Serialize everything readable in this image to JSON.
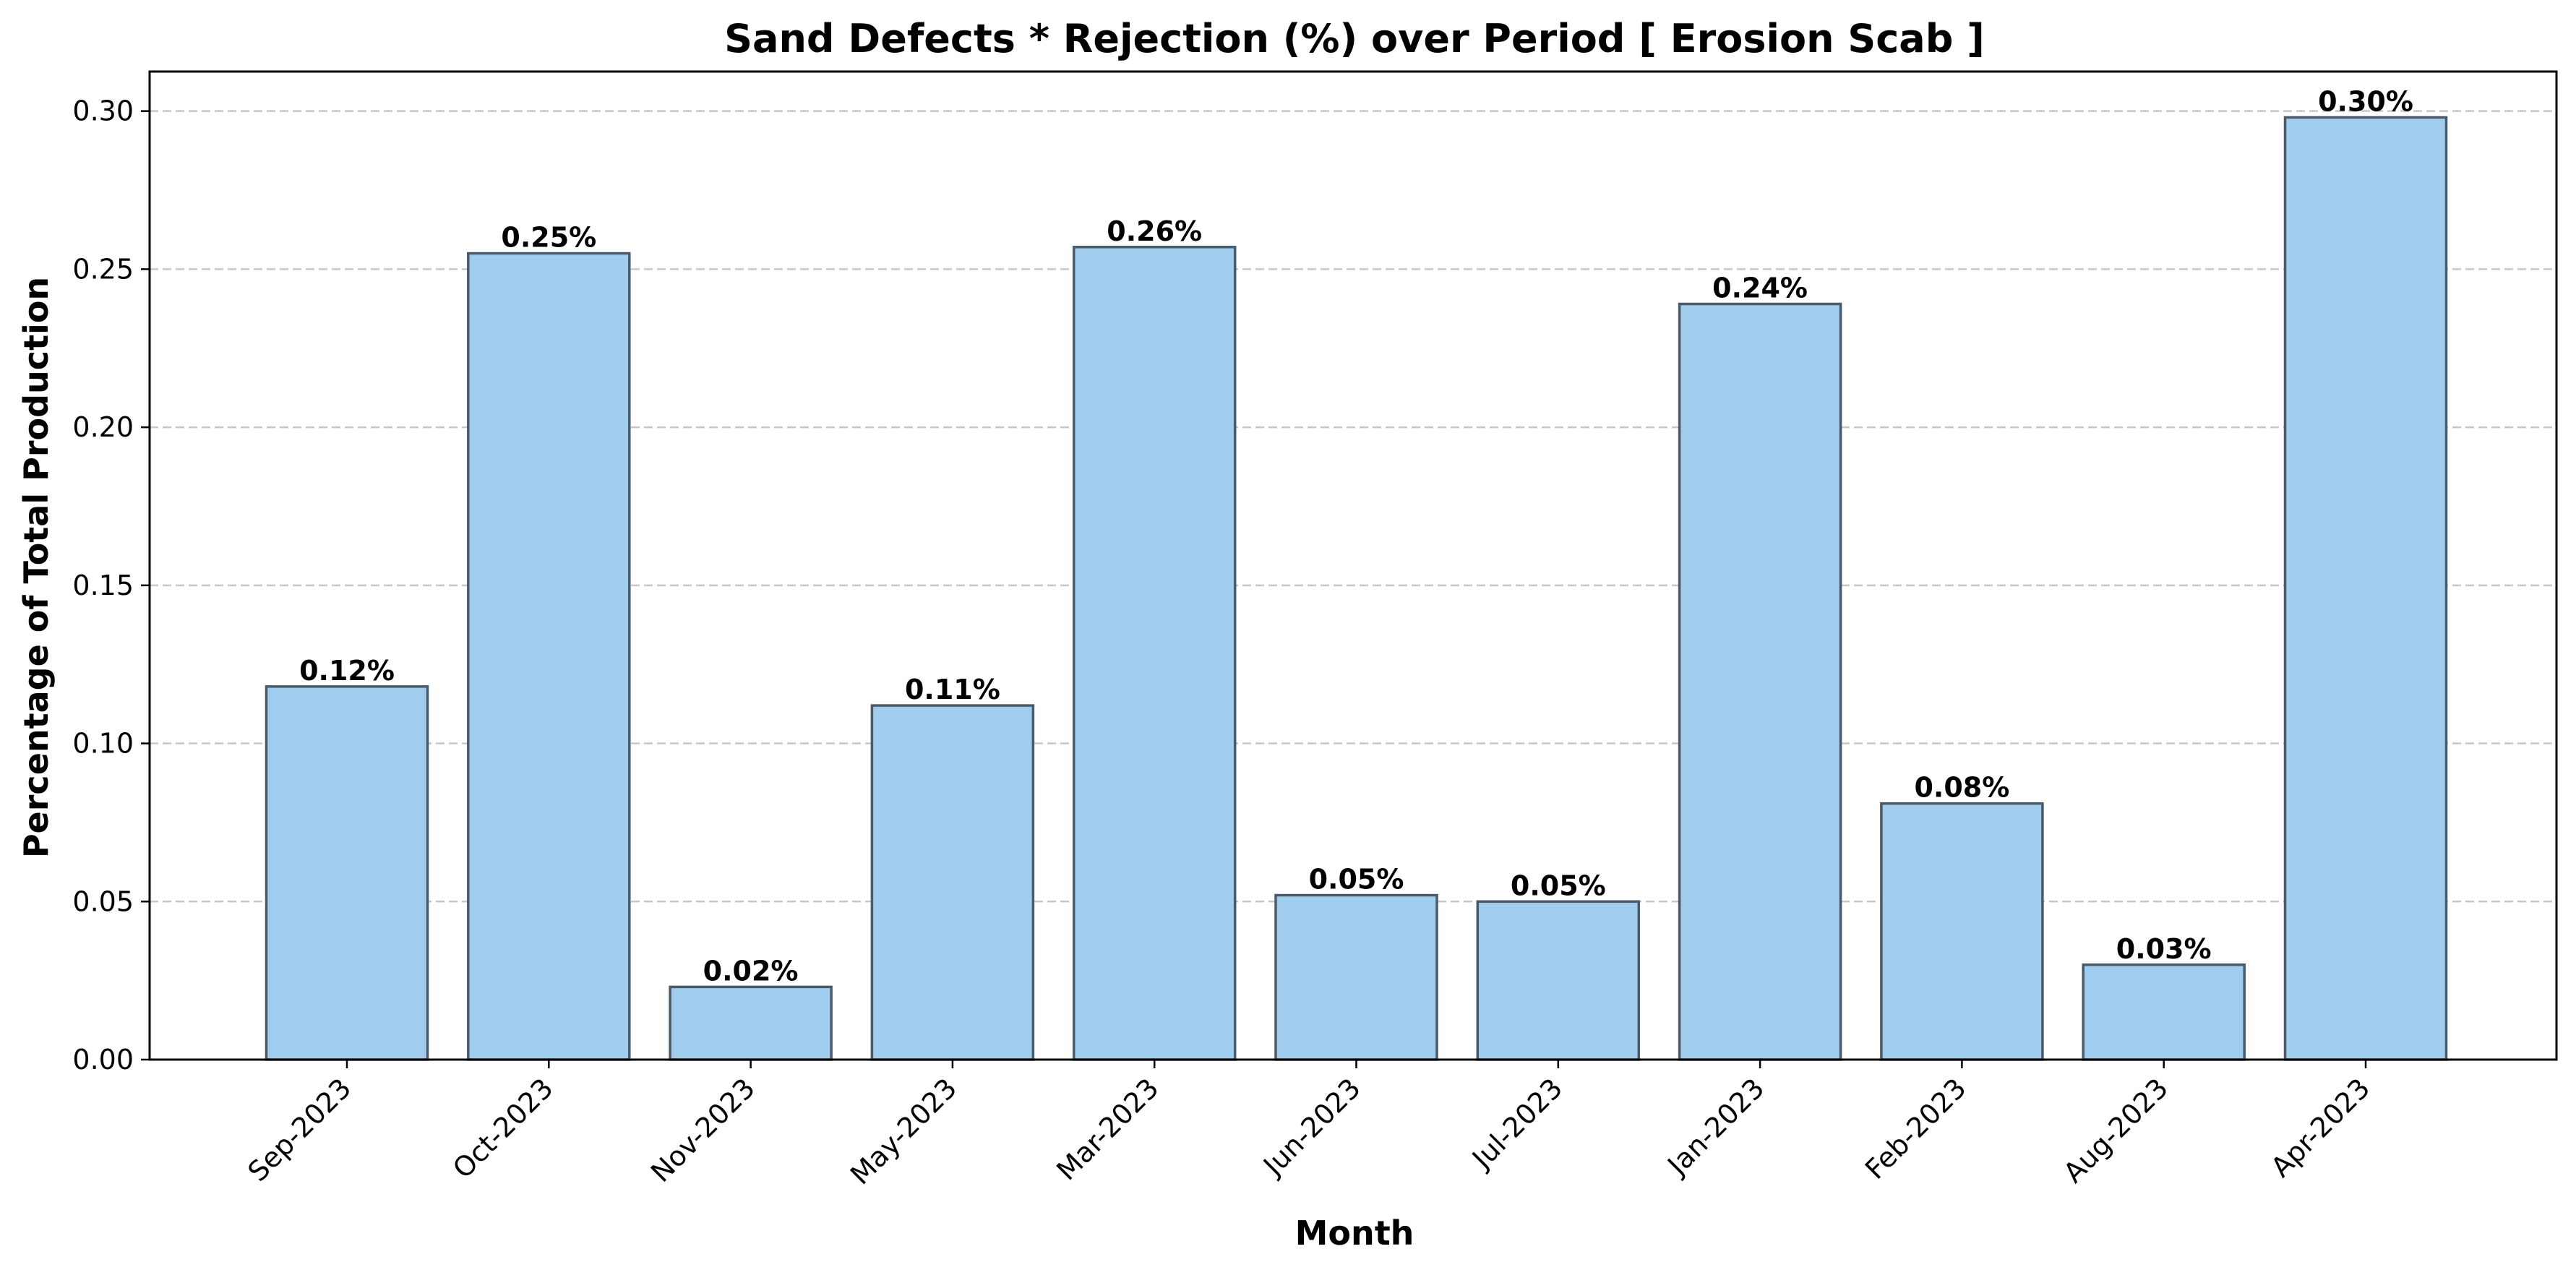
{
  "chart_data": {
    "type": "bar",
    "title": "Sand Defects * Rejection (%) over Period [ Erosion Scab ]",
    "xlabel": "Month",
    "ylabel": "Percentage of Total Production",
    "categories": [
      "Sep-2023",
      "Oct-2023",
      "Nov-2023",
      "May-2023",
      "Mar-2023",
      "Jun-2023",
      "Jul-2023",
      "Jan-2023",
      "Feb-2023",
      "Aug-2023",
      "Apr-2023"
    ],
    "values": [
      0.118,
      0.255,
      0.023,
      0.112,
      0.257,
      0.052,
      0.05,
      0.239,
      0.081,
      0.03,
      0.298
    ],
    "data_labels": [
      "0.12%",
      "0.25%",
      "0.02%",
      "0.11%",
      "0.26%",
      "0.05%",
      "0.05%",
      "0.24%",
      "0.08%",
      "0.03%",
      "0.30%"
    ],
    "yticks": [
      0.0,
      0.05,
      0.1,
      0.15,
      0.2,
      0.25,
      0.3
    ],
    "ytick_labels": [
      "0.00",
      "0.05",
      "0.10",
      "0.15",
      "0.20",
      "0.25",
      "0.30"
    ],
    "ylim": [
      0,
      0.3125
    ],
    "grid": "y-dashed",
    "colors": {
      "bar_fill": "#a0cced",
      "bar_edge": "#4a5a6a",
      "grid": "#c8c8c8",
      "axis": "#000000"
    }
  }
}
